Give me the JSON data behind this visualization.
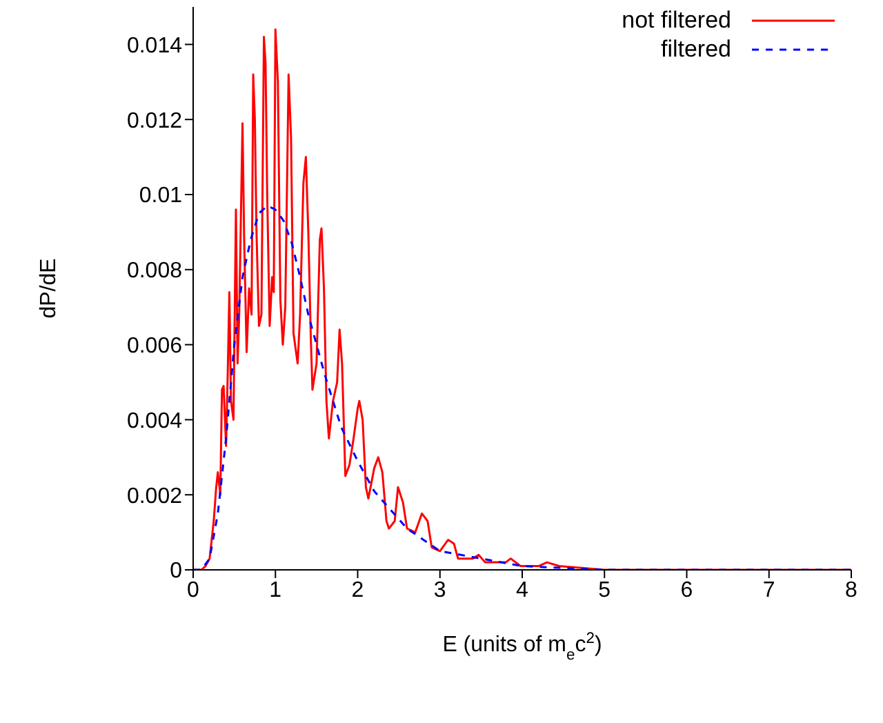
{
  "chart_data": {
    "type": "line",
    "xlabel": "E (units of m$_{e}$c$^{2}$)",
    "ylabel": "dP/dE",
    "xlim": [
      0,
      8
    ],
    "xticks": [
      0,
      1,
      2,
      3,
      4,
      5,
      6,
      7,
      8
    ],
    "ylim": [
      0,
      0.015
    ],
    "yticks": [
      0,
      0.002,
      0.004,
      0.006,
      0.008,
      0.01,
      0.012,
      0.014
    ],
    "legend": "top right",
    "marker": "none",
    "series": [
      {
        "name": "not filtered",
        "color": "#ff0000",
        "line_style": "solid",
        "x": [
          0,
          0.1,
          0.15,
          0.2,
          0.23,
          0.25,
          0.28,
          0.3,
          0.33,
          0.35,
          0.37,
          0.4,
          0.42,
          0.44,
          0.46,
          0.49,
          0.52,
          0.54,
          0.56,
          0.6,
          0.62,
          0.65,
          0.68,
          0.71,
          0.73,
          0.75,
          0.77,
          0.8,
          0.83,
          0.86,
          0.88,
          0.9,
          0.93,
          0.96,
          0.98,
          1,
          1.03,
          1.06,
          1.09,
          1.12,
          1.16,
          1.19,
          1.22,
          1.27,
          1.3,
          1.34,
          1.37,
          1.4,
          1.43,
          1.45,
          1.5,
          1.54,
          1.56,
          1.59,
          1.62,
          1.65,
          1.7,
          1.75,
          1.78,
          1.81,
          1.85,
          1.9,
          1.95,
          2,
          2.02,
          2.06,
          2.1,
          2.13,
          2.2,
          2.25,
          2.3,
          2.35,
          2.38,
          2.45,
          2.49,
          2.55,
          2.6,
          2.7,
          2.78,
          2.85,
          2.9,
          3,
          3.1,
          3.17,
          3.22,
          3.4,
          3.47,
          3.55,
          3.8,
          3.86,
          3.98,
          4.2,
          4.3,
          4.45,
          5,
          6,
          8
        ],
        "values": [
          0,
          0,
          0.0001,
          0.0003,
          0.0009,
          0.0013,
          0.0022,
          0.0026,
          0.002,
          0.0048,
          0.0049,
          0.0033,
          0.0052,
          0.0074,
          0.0045,
          0.004,
          0.0096,
          0.0055,
          0.0068,
          0.0119,
          0.0088,
          0.0058,
          0.0075,
          0.0068,
          0.0132,
          0.012,
          0.009,
          0.0065,
          0.0068,
          0.0142,
          0.0135,
          0.01,
          0.0065,
          0.0078,
          0.0074,
          0.0144,
          0.013,
          0.0072,
          0.006,
          0.007,
          0.0132,
          0.0115,
          0.0063,
          0.0055,
          0.0068,
          0.0103,
          0.011,
          0.009,
          0.0062,
          0.0048,
          0.0055,
          0.0088,
          0.0091,
          0.0075,
          0.0045,
          0.0035,
          0.0045,
          0.005,
          0.0064,
          0.0055,
          0.0025,
          0.0028,
          0.0035,
          0.0043,
          0.0045,
          0.004,
          0.0022,
          0.0019,
          0.0027,
          0.003,
          0.0026,
          0.0013,
          0.0011,
          0.0013,
          0.0022,
          0.0018,
          0.0011,
          0.001,
          0.0015,
          0.0013,
          0.0006,
          0.0005,
          0.0008,
          0.0007,
          0.0003,
          0.0003,
          0.0004,
          0.0002,
          0.0002,
          0.0003,
          0.0001,
          0.0001,
          0.0002,
          0.0001,
          0,
          0,
          0
        ]
      },
      {
        "name": "filtered",
        "color": "#0000ff",
        "line_style": "dashed",
        "x": [
          0,
          0.1,
          0.2,
          0.3,
          0.4,
          0.5,
          0.6,
          0.7,
          0.8,
          0.9,
          1,
          1.1,
          1.2,
          1.3,
          1.4,
          1.5,
          1.6,
          1.8,
          2,
          2.2,
          2.4,
          2.6,
          2.8,
          3,
          3.5,
          4,
          5,
          6,
          8
        ],
        "values": [
          0,
          0,
          0.0003,
          0.0015,
          0.0035,
          0.006,
          0.0078,
          0.0088,
          0.0095,
          0.0097,
          0.0096,
          0.0093,
          0.0087,
          0.0078,
          0.0068,
          0.006,
          0.0052,
          0.0038,
          0.0029,
          0.0021,
          0.0016,
          0.0011,
          0.0008,
          0.0005,
          0.0003,
          0.0001,
          0,
          0,
          0
        ]
      }
    ]
  }
}
